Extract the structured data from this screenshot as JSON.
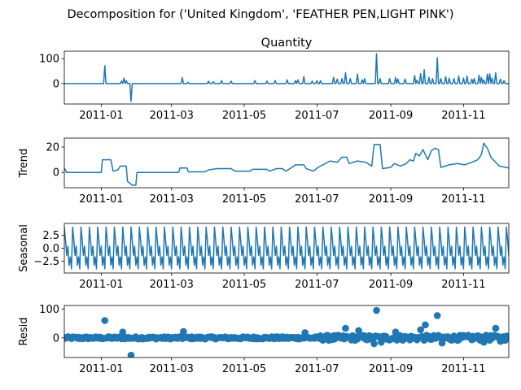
{
  "figure": {
    "suptitle": "Decomposition for ('United Kingdom', 'FEATHER PEN,LIGHT PINK')"
  },
  "colors": {
    "series": "#1f77b4",
    "axes": "#000000",
    "background": "#ffffff"
  },
  "x_axis": {
    "start": "2010-12-01",
    "end": "2011-12-09",
    "ticks": [
      {
        "date": "2011-01-01",
        "label": "2011-01"
      },
      {
        "date": "2011-03-01",
        "label": "2011-03"
      },
      {
        "date": "2011-05-01",
        "label": "2011-05"
      },
      {
        "date": "2011-07-01",
        "label": "2011-07"
      },
      {
        "date": "2011-09-01",
        "label": "2011-09"
      },
      {
        "date": "2011-11-01",
        "label": "2011-11"
      }
    ]
  },
  "chart_data": [
    {
      "id": "observed",
      "type": "line",
      "title": "Quantity",
      "ylabel": "",
      "ylim": [
        -82,
        130
      ],
      "yticks": [
        {
          "value": 0,
          "label": "0"
        },
        {
          "value": 100,
          "label": "100"
        }
      ],
      "baseline": 0,
      "events": [
        {
          "x": "2011-01-04",
          "y": 72
        },
        {
          "x": "2011-01-18",
          "y": 10
        },
        {
          "x": "2011-01-20",
          "y": 22
        },
        {
          "x": "2011-01-22",
          "y": 12
        },
        {
          "x": "2011-01-26",
          "y": -72
        },
        {
          "x": "2011-03-10",
          "y": 24
        },
        {
          "x": "2011-03-15",
          "y": 5
        },
        {
          "x": "2011-04-01",
          "y": 10
        },
        {
          "x": "2011-04-05",
          "y": 8
        },
        {
          "x": "2011-04-12",
          "y": 12
        },
        {
          "x": "2011-04-20",
          "y": 10
        },
        {
          "x": "2011-05-10",
          "y": 12
        },
        {
          "x": "2011-05-20",
          "y": 10
        },
        {
          "x": "2011-05-27",
          "y": 12
        },
        {
          "x": "2011-06-06",
          "y": 15
        },
        {
          "x": "2011-06-13",
          "y": 12
        },
        {
          "x": "2011-06-15",
          "y": 15
        },
        {
          "x": "2011-06-20",
          "y": 28
        },
        {
          "x": "2011-06-27",
          "y": 10
        },
        {
          "x": "2011-07-01",
          "y": 12
        },
        {
          "x": "2011-07-04",
          "y": 12
        },
        {
          "x": "2011-07-15",
          "y": 25
        },
        {
          "x": "2011-07-18",
          "y": 18
        },
        {
          "x": "2011-07-22",
          "y": 20
        },
        {
          "x": "2011-07-25",
          "y": 44
        },
        {
          "x": "2011-07-29",
          "y": 20
        },
        {
          "x": "2011-08-04",
          "y": 38
        },
        {
          "x": "2011-08-08",
          "y": 15
        },
        {
          "x": "2011-08-10",
          "y": 20
        },
        {
          "x": "2011-08-20",
          "y": 120
        },
        {
          "x": "2011-08-23",
          "y": 20
        },
        {
          "x": "2011-08-31",
          "y": 20
        },
        {
          "x": "2011-09-05",
          "y": 25
        },
        {
          "x": "2011-09-07",
          "y": 18
        },
        {
          "x": "2011-09-13",
          "y": 18
        },
        {
          "x": "2011-09-21",
          "y": 32
        },
        {
          "x": "2011-09-23",
          "y": 14
        },
        {
          "x": "2011-09-26",
          "y": 40
        },
        {
          "x": "2011-09-29",
          "y": 56
        },
        {
          "x": "2011-10-03",
          "y": 25
        },
        {
          "x": "2011-10-06",
          "y": 20
        },
        {
          "x": "2011-10-10",
          "y": 104
        },
        {
          "x": "2011-10-13",
          "y": 20
        },
        {
          "x": "2011-10-17",
          "y": 28
        },
        {
          "x": "2011-10-20",
          "y": 22
        },
        {
          "x": "2011-10-24",
          "y": 20
        },
        {
          "x": "2011-10-28",
          "y": 30
        },
        {
          "x": "2011-11-01",
          "y": 22
        },
        {
          "x": "2011-11-04",
          "y": 30
        },
        {
          "x": "2011-11-08",
          "y": 18
        },
        {
          "x": "2011-11-10",
          "y": 20
        },
        {
          "x": "2011-11-14",
          "y": 34
        },
        {
          "x": "2011-11-16",
          "y": 25
        },
        {
          "x": "2011-11-18",
          "y": 15
        },
        {
          "x": "2011-11-21",
          "y": 38
        },
        {
          "x": "2011-11-23",
          "y": 40
        },
        {
          "x": "2011-11-25",
          "y": 22
        },
        {
          "x": "2011-11-28",
          "y": 44
        },
        {
          "x": "2011-12-02",
          "y": 18
        },
        {
          "x": "2011-12-05",
          "y": 12
        }
      ]
    },
    {
      "id": "trend",
      "type": "line",
      "title": "",
      "ylabel": "Trend",
      "ylim": [
        -12,
        27
      ],
      "yticks": [
        {
          "value": 0,
          "label": "0"
        },
        {
          "value": 20,
          "label": "20"
        }
      ],
      "points": [
        {
          "x": "2010-12-01",
          "y": 3.5
        },
        {
          "x": "2010-12-03",
          "y": 0
        },
        {
          "x": "2011-01-01",
          "y": 0
        },
        {
          "x": "2011-01-02",
          "y": 10
        },
        {
          "x": "2011-01-09",
          "y": 10
        },
        {
          "x": "2011-01-11",
          "y": 1
        },
        {
          "x": "2011-01-15",
          "y": 2
        },
        {
          "x": "2011-01-17",
          "y": 5
        },
        {
          "x": "2011-01-22",
          "y": 5
        },
        {
          "x": "2011-01-23",
          "y": -7
        },
        {
          "x": "2011-01-27",
          "y": -10
        },
        {
          "x": "2011-01-30",
          "y": -10
        },
        {
          "x": "2011-01-31",
          "y": 0
        },
        {
          "x": "2011-03-07",
          "y": 0
        },
        {
          "x": "2011-03-08",
          "y": 3.5
        },
        {
          "x": "2011-03-14",
          "y": 3.5
        },
        {
          "x": "2011-03-15",
          "y": 0.5
        },
        {
          "x": "2011-03-29",
          "y": 0.5
        },
        {
          "x": "2011-04-01",
          "y": 2
        },
        {
          "x": "2011-04-08",
          "y": 3
        },
        {
          "x": "2011-04-20",
          "y": 3
        },
        {
          "x": "2011-04-23",
          "y": 1
        },
        {
          "x": "2011-05-06",
          "y": 1
        },
        {
          "x": "2011-05-08",
          "y": 2.5
        },
        {
          "x": "2011-05-20",
          "y": 2.5
        },
        {
          "x": "2011-05-22",
          "y": 1
        },
        {
          "x": "2011-05-28",
          "y": 3
        },
        {
          "x": "2011-06-02",
          "y": 3
        },
        {
          "x": "2011-06-05",
          "y": 1
        },
        {
          "x": "2011-06-10",
          "y": 4
        },
        {
          "x": "2011-06-13",
          "y": 6
        },
        {
          "x": "2011-06-20",
          "y": 6
        },
        {
          "x": "2011-06-22",
          "y": 3
        },
        {
          "x": "2011-06-28",
          "y": 1
        },
        {
          "x": "2011-07-02",
          "y": 4
        },
        {
          "x": "2011-07-06",
          "y": 6
        },
        {
          "x": "2011-07-12",
          "y": 9
        },
        {
          "x": "2011-07-18",
          "y": 8
        },
        {
          "x": "2011-07-22",
          "y": 12
        },
        {
          "x": "2011-07-26",
          "y": 12
        },
        {
          "x": "2011-07-28",
          "y": 7
        },
        {
          "x": "2011-08-04",
          "y": 9
        },
        {
          "x": "2011-08-11",
          "y": 8
        },
        {
          "x": "2011-08-16",
          "y": 5
        },
        {
          "x": "2011-08-18",
          "y": 22
        },
        {
          "x": "2011-08-23",
          "y": 22
        },
        {
          "x": "2011-08-25",
          "y": 3
        },
        {
          "x": "2011-09-01",
          "y": 4
        },
        {
          "x": "2011-09-04",
          "y": 7
        },
        {
          "x": "2011-09-09",
          "y": 5
        },
        {
          "x": "2011-09-14",
          "y": 7
        },
        {
          "x": "2011-09-17",
          "y": 10
        },
        {
          "x": "2011-09-20",
          "y": 9
        },
        {
          "x": "2011-09-22",
          "y": 15
        },
        {
          "x": "2011-09-25",
          "y": 13
        },
        {
          "x": "2011-09-28",
          "y": 18
        },
        {
          "x": "2011-10-02",
          "y": 10
        },
        {
          "x": "2011-10-05",
          "y": 17
        },
        {
          "x": "2011-10-08",
          "y": 19
        },
        {
          "x": "2011-10-11",
          "y": 18
        },
        {
          "x": "2011-10-13",
          "y": 4
        },
        {
          "x": "2011-10-20",
          "y": 6
        },
        {
          "x": "2011-10-27",
          "y": 7
        },
        {
          "x": "2011-11-02",
          "y": 6
        },
        {
          "x": "2011-11-08",
          "y": 8
        },
        {
          "x": "2011-11-13",
          "y": 10
        },
        {
          "x": "2011-11-16",
          "y": 14
        },
        {
          "x": "2011-11-18",
          "y": 23
        },
        {
          "x": "2011-11-21",
          "y": 19
        },
        {
          "x": "2011-11-24",
          "y": 12
        },
        {
          "x": "2011-12-01",
          "y": 5
        },
        {
          "x": "2011-12-09",
          "y": 3.5
        }
      ]
    },
    {
      "id": "seasonal",
      "type": "line",
      "title": "",
      "ylabel": "Seasonal",
      "ylim": [
        -4.8,
        4.8
      ],
      "yticks": [
        {
          "value": -2.5,
          "label": "−2.5"
        },
        {
          "value": 0,
          "label": "0.0"
        },
        {
          "value": 2.5,
          "label": "2.5"
        }
      ],
      "period_days": 7,
      "cycle": [
        4.1,
        1.6,
        -1.4,
        0.4,
        -3.3,
        -1.7,
        -4.0
      ]
    },
    {
      "id": "resid",
      "type": "scatter",
      "title": "",
      "ylabel": "Resid",
      "ylim": [
        -68,
        112
      ],
      "yticks": [
        {
          "value": 0,
          "label": "0"
        },
        {
          "value": 100,
          "label": "100"
        }
      ],
      "outliers": [
        {
          "x": "2011-01-04",
          "y": 60
        },
        {
          "x": "2011-01-19",
          "y": 20
        },
        {
          "x": "2011-01-26",
          "y": -60
        },
        {
          "x": "2011-03-11",
          "y": 22
        },
        {
          "x": "2011-06-21",
          "y": 18
        },
        {
          "x": "2011-07-25",
          "y": 33
        },
        {
          "x": "2011-08-05",
          "y": 25
        },
        {
          "x": "2011-08-18",
          "y": -20
        },
        {
          "x": "2011-08-20",
          "y": 95
        },
        {
          "x": "2011-08-24",
          "y": -15
        },
        {
          "x": "2011-09-05",
          "y": 20
        },
        {
          "x": "2011-09-26",
          "y": 28
        },
        {
          "x": "2011-09-30",
          "y": 45
        },
        {
          "x": "2011-10-10",
          "y": 77
        },
        {
          "x": "2011-10-14",
          "y": -18
        },
        {
          "x": "2011-11-18",
          "y": -15
        },
        {
          "x": "2011-11-28",
          "y": 33
        },
        {
          "x": "2011-12-02",
          "y": -12
        }
      ]
    }
  ]
}
